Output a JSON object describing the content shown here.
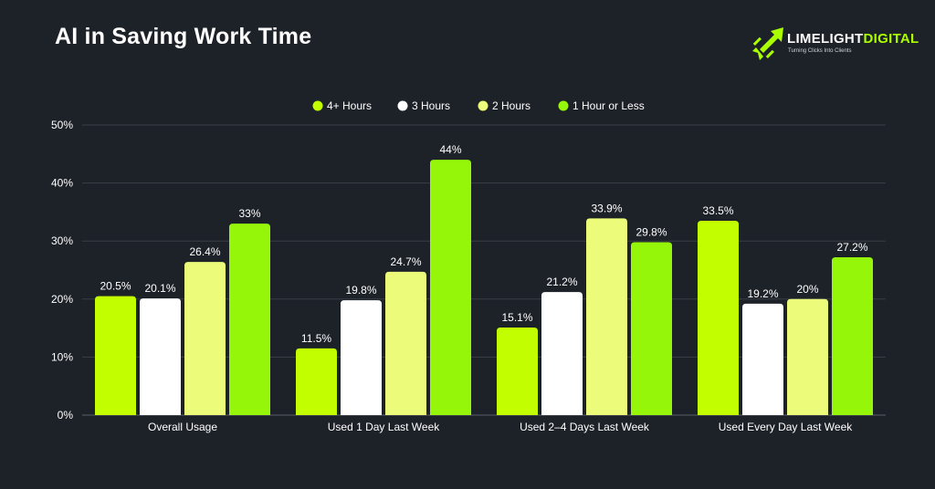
{
  "header": {
    "title": "AI in Saving Work Time",
    "logo_word1": "LIMELIGHT",
    "logo_word2": "DIGITAL",
    "logo_tagline": "Turning Clicks Into Clients"
  },
  "colors": {
    "background": "#1d2128",
    "gridline": "#3a3f47",
    "axis_text": "#ffffff"
  },
  "chart_data": {
    "type": "bar",
    "title": "AI in Saving Work Time",
    "xlabel": "",
    "ylabel": "",
    "ylim": [
      0,
      50
    ],
    "yticks": [
      0,
      10,
      20,
      30,
      40,
      50
    ],
    "ytick_labels": [
      "0%",
      "10%",
      "20%",
      "30%",
      "40%",
      "50%"
    ],
    "grid": true,
    "legend_position": "top-center",
    "categories": [
      "Overall Usage",
      "Used 1 Day Last Week",
      "Used 2–4 Days Last Week",
      "Used Every Day Last Week"
    ],
    "series": [
      {
        "name": "4+ Hours",
        "color": "#c2fd00",
        "values": [
          20.5,
          11.5,
          15.1,
          33.5
        ],
        "labels": [
          "20.5%",
          "11.5%",
          "15.1%",
          "33.5%"
        ]
      },
      {
        "name": "3 Hours",
        "color": "#ffffff",
        "values": [
          20.1,
          19.8,
          21.2,
          19.2
        ],
        "labels": [
          "20.1%",
          "19.8%",
          "21.2%",
          "19.2%"
        ]
      },
      {
        "name": "2 Hours",
        "color": "#ecfc7a",
        "values": [
          26.4,
          24.7,
          33.9,
          20
        ],
        "labels": [
          "26.4%",
          "24.7%",
          "33.9%",
          "20%"
        ]
      },
      {
        "name": "1 Hour or Less",
        "color": "#96f60a",
        "values": [
          33,
          44,
          29.8,
          27.2
        ],
        "labels": [
          "33%",
          "44%",
          "29.8%",
          "27.2%"
        ]
      }
    ]
  }
}
